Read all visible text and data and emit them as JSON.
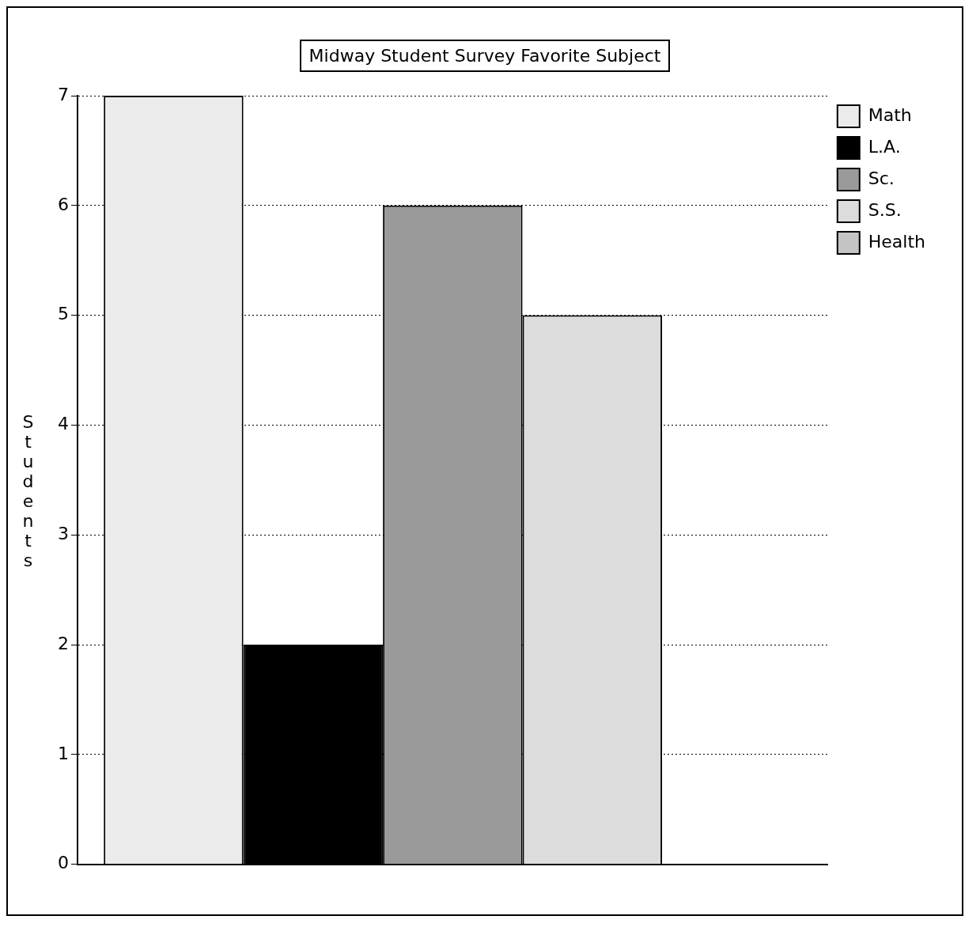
{
  "chart_data": {
    "type": "bar",
    "title": "Midway Student Survey Favorite Subject",
    "ylabel": "Students",
    "categories": [
      null
    ],
    "series": [
      {
        "name": "Math",
        "color": "#ebebeb",
        "values": [
          7
        ]
      },
      {
        "name": "L.A.",
        "color": "#000000",
        "values": [
          2
        ]
      },
      {
        "name": "Sc.",
        "color": "#9a9a9a",
        "values": [
          6
        ]
      },
      {
        "name": "S.S.",
        "color": "#dcdcdc",
        "values": [
          5
        ]
      },
      {
        "name": "Health",
        "color": "#c4c4c4",
        "values": [
          0
        ]
      }
    ],
    "ylim": [
      0,
      7
    ],
    "yticks": [
      0,
      1,
      2,
      3,
      4,
      5,
      6,
      7
    ],
    "grid": "y",
    "line_style": "dotted",
    "legend": "top right"
  }
}
